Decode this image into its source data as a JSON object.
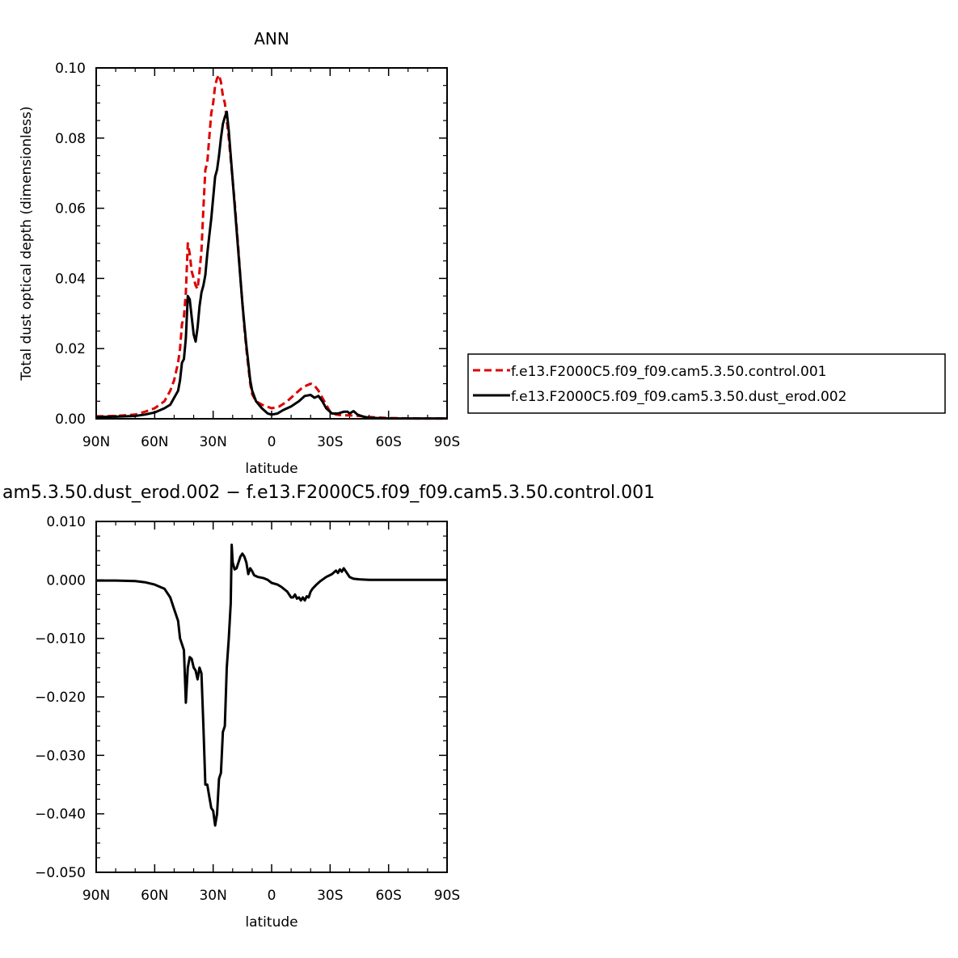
{
  "chart_data": [
    {
      "type": "line",
      "title": "ANN",
      "xlabel": "latitude",
      "ylabel": "Total dust optical depth (dimensionless)",
      "xlim": [
        90,
        -90
      ],
      "ylim": [
        0,
        0.1
      ],
      "x_ticks": [
        {
          "value": 90,
          "label": "90N"
        },
        {
          "value": 60,
          "label": "60N"
        },
        {
          "value": 30,
          "label": "30N"
        },
        {
          "value": 0,
          "label": "0"
        },
        {
          "value": -30,
          "label": "30S"
        },
        {
          "value": -60,
          "label": "60S"
        },
        {
          "value": -90,
          "label": "90S"
        }
      ],
      "y_ticks": [
        {
          "value": 0,
          "label": "0.00"
        },
        {
          "value": 0.02,
          "label": "0.02"
        },
        {
          "value": 0.04,
          "label": "0.04"
        },
        {
          "value": 0.06,
          "label": "0.06"
        },
        {
          "value": 0.08,
          "label": "0.08"
        },
        {
          "value": 0.1,
          "label": "0.10"
        }
      ],
      "legend_position": "right",
      "grid": false,
      "series": [
        {
          "name": "f.e13.F2000C5.f09_f09.cam5.3.50.control.001",
          "color": "#dd0000",
          "dash": "dashed",
          "points": [
            [
              90,
              0.0007
            ],
            [
              80,
              0.0008
            ],
            [
              70,
              0.0012
            ],
            [
              65,
              0.002
            ],
            [
              60,
              0.003
            ],
            [
              55,
              0.005
            ],
            [
              52,
              0.008
            ],
            [
              50,
              0.011
            ],
            [
              48,
              0.016
            ],
            [
              47,
              0.02
            ],
            [
              46,
              0.027
            ],
            [
              45,
              0.029
            ],
            [
              44,
              0.036
            ],
            [
              43,
              0.05
            ],
            [
              42,
              0.047
            ],
            [
              41,
              0.042
            ],
            [
              40,
              0.04
            ],
            [
              39,
              0.038
            ],
            [
              38,
              0.037
            ],
            [
              37,
              0.042
            ],
            [
              36,
              0.048
            ],
            [
              35,
              0.06
            ],
            [
              34,
              0.071
            ],
            [
              33,
              0.073
            ],
            [
              32,
              0.08
            ],
            [
              31,
              0.087
            ],
            [
              30,
              0.09
            ],
            [
              29,
              0.095
            ],
            [
              28,
              0.097
            ],
            [
              27,
              0.098
            ],
            [
              26,
              0.096
            ],
            [
              25,
              0.092
            ],
            [
              24,
              0.09
            ],
            [
              23,
              0.085
            ],
            [
              22,
              0.08
            ],
            [
              21,
              0.074
            ],
            [
              20,
              0.068
            ],
            [
              19,
              0.062
            ],
            [
              18,
              0.055
            ],
            [
              17,
              0.048
            ],
            [
              16,
              0.04
            ],
            [
              15,
              0.033
            ],
            [
              14,
              0.026
            ],
            [
              13,
              0.02
            ],
            [
              12,
              0.015
            ],
            [
              11,
              0.01
            ],
            [
              10,
              0.007
            ],
            [
              8,
              0.005
            ],
            [
              5,
              0.004
            ],
            [
              0,
              0.003
            ],
            [
              -4,
              0.0035
            ],
            [
              -8,
              0.005
            ],
            [
              -12,
              0.007
            ],
            [
              -16,
              0.009
            ],
            [
              -18,
              0.0095
            ],
            [
              -20,
              0.01
            ],
            [
              -22,
              0.0095
            ],
            [
              -24,
              0.008
            ],
            [
              -26,
              0.006
            ],
            [
              -28,
              0.004
            ],
            [
              -30,
              0.002
            ],
            [
              -33,
              0.0012
            ],
            [
              -36,
              0.001
            ],
            [
              -40,
              0.001
            ],
            [
              -45,
              0.0008
            ],
            [
              -50,
              0.0005
            ],
            [
              -60,
              0.0002
            ],
            [
              -75,
              0.0001
            ],
            [
              -90,
              0.0001
            ]
          ]
        },
        {
          "name": "f.e13.F2000C5.f09_f09.cam5.3.50.dust_erod.002",
          "color": "#000000",
          "dash": "solid",
          "points": [
            [
              90,
              0.0005
            ],
            [
              80,
              0.0006
            ],
            [
              70,
              0.0008
            ],
            [
              65,
              0.0012
            ],
            [
              60,
              0.0018
            ],
            [
              55,
              0.003
            ],
            [
              52,
              0.004
            ],
            [
              50,
              0.006
            ],
            [
              48,
              0.008
            ],
            [
              47,
              0.011
            ],
            [
              46,
              0.016
            ],
            [
              45,
              0.017
            ],
            [
              44,
              0.023
            ],
            [
              43,
              0.035
            ],
            [
              42,
              0.034
            ],
            [
              41,
              0.029
            ],
            [
              40,
              0.024
            ],
            [
              39,
              0.022
            ],
            [
              38,
              0.026
            ],
            [
              37,
              0.032
            ],
            [
              36,
              0.036
            ],
            [
              35,
              0.038
            ],
            [
              34,
              0.041
            ],
            [
              33,
              0.047
            ],
            [
              32,
              0.052
            ],
            [
              31,
              0.057
            ],
            [
              30,
              0.063
            ],
            [
              29,
              0.069
            ],
            [
              28,
              0.071
            ],
            [
              27,
              0.075
            ],
            [
              26,
              0.08
            ],
            [
              25,
              0.084
            ],
            [
              24,
              0.086
            ],
            [
              23,
              0.0875
            ],
            [
              22,
              0.082
            ],
            [
              21,
              0.075
            ],
            [
              20,
              0.068
            ],
            [
              19,
              0.061
            ],
            [
              18,
              0.054
            ],
            [
              17,
              0.047
            ],
            [
              16,
              0.04
            ],
            [
              15,
              0.033
            ],
            [
              14,
              0.027
            ],
            [
              13,
              0.021
            ],
            [
              12,
              0.016
            ],
            [
              11,
              0.011
            ],
            [
              10,
              0.008
            ],
            [
              8,
              0.005
            ],
            [
              5,
              0.003
            ],
            [
              2,
              0.0015
            ],
            [
              0,
              0.0012
            ],
            [
              -3,
              0.0015
            ],
            [
              -6,
              0.0025
            ],
            [
              -10,
              0.0035
            ],
            [
              -14,
              0.005
            ],
            [
              -17,
              0.0065
            ],
            [
              -20,
              0.0068
            ],
            [
              -22,
              0.006
            ],
            [
              -24,
              0.0065
            ],
            [
              -26,
              0.005
            ],
            [
              -28,
              0.003
            ],
            [
              -31,
              0.0015
            ],
            [
              -34,
              0.0015
            ],
            [
              -37,
              0.002
            ],
            [
              -39,
              0.002
            ],
            [
              -40,
              0.0015
            ],
            [
              -42,
              0.0022
            ],
            [
              -44,
              0.0012
            ],
            [
              -47,
              0.0006
            ],
            [
              -50,
              0.0003
            ],
            [
              -60,
              0.0001
            ],
            [
              -90,
              0.0001
            ]
          ]
        }
      ]
    },
    {
      "type": "line",
      "title": "am5.3.50.dust_erod.002 − f.e13.F2000C5.f09_f09.cam5.3.50.control.001",
      "xlabel": "latitude",
      "ylabel": "",
      "xlim": [
        90,
        -90
      ],
      "ylim": [
        -0.05,
        0.01
      ],
      "x_ticks": [
        {
          "value": 90,
          "label": "90N"
        },
        {
          "value": 60,
          "label": "60N"
        },
        {
          "value": 30,
          "label": "30N"
        },
        {
          "value": 0,
          "label": "0"
        },
        {
          "value": -30,
          "label": "30S"
        },
        {
          "value": -60,
          "label": "60S"
        },
        {
          "value": -90,
          "label": "90S"
        }
      ],
      "y_ticks": [
        {
          "value": -0.05,
          "label": "−0.050"
        },
        {
          "value": -0.04,
          "label": "−0.040"
        },
        {
          "value": -0.03,
          "label": "−0.030"
        },
        {
          "value": -0.02,
          "label": "−0.020"
        },
        {
          "value": -0.01,
          "label": "−0.010"
        },
        {
          "value": 0,
          "label": "0.000"
        },
        {
          "value": 0.01,
          "label": "0.010"
        }
      ],
      "grid": false,
      "series": [
        {
          "color": "#000000",
          "dash": "solid",
          "points": [
            [
              90,
              -0.0001
            ],
            [
              80,
              -0.0001
            ],
            [
              70,
              -0.0002
            ],
            [
              65,
              -0.0004
            ],
            [
              60,
              -0.0008
            ],
            [
              55,
              -0.0015
            ],
            [
              52,
              -0.003
            ],
            [
              50,
              -0.005
            ],
            [
              48,
              -0.007
            ],
            [
              47,
              -0.01
            ],
            [
              46,
              -0.011
            ],
            [
              45,
              -0.012
            ],
            [
              44,
              -0.021
            ],
            [
              43,
              -0.015
            ],
            [
              42,
              -0.0132
            ],
            [
              41,
              -0.0135
            ],
            [
              40,
              -0.015
            ],
            [
              39,
              -0.0155
            ],
            [
              38,
              -0.017
            ],
            [
              37,
              -0.015
            ],
            [
              36,
              -0.016
            ],
            [
              35,
              -0.025
            ],
            [
              34,
              -0.035
            ],
            [
              33,
              -0.035
            ],
            [
              32,
              -0.037
            ],
            [
              31,
              -0.039
            ],
            [
              30,
              -0.0395
            ],
            [
              29,
              -0.042
            ],
            [
              28,
              -0.04
            ],
            [
              27,
              -0.034
            ],
            [
              26,
              -0.033
            ],
            [
              25,
              -0.026
            ],
            [
              24,
              -0.025
            ],
            [
              23,
              -0.015
            ],
            [
              22,
              -0.01
            ],
            [
              21,
              -0.004
            ],
            [
              20.5,
              0.006
            ],
            [
              20,
              0.003
            ],
            [
              19,
              0.0018
            ],
            [
              18,
              0.002
            ],
            [
              17,
              0.003
            ],
            [
              16,
              0.004
            ],
            [
              15,
              0.0045
            ],
            [
              14,
              0.004
            ],
            [
              13,
              0.003
            ],
            [
              12,
              0.001
            ],
            [
              11,
              0.002
            ],
            [
              10,
              0.0015
            ],
            [
              9,
              0.0008
            ],
            [
              7,
              0.0005
            ],
            [
              4,
              0.0003
            ],
            [
              2,
              0
            ],
            [
              0,
              -0.0005
            ],
            [
              -3,
              -0.0008
            ],
            [
              -5,
              -0.0012
            ],
            [
              -8,
              -0.002
            ],
            [
              -10,
              -0.003
            ],
            [
              -11,
              -0.003
            ],
            [
              -12,
              -0.0025
            ],
            [
              -13,
              -0.0032
            ],
            [
              -14,
              -0.003
            ],
            [
              -15,
              -0.0035
            ],
            [
              -16,
              -0.003
            ],
            [
              -17,
              -0.0035
            ],
            [
              -18,
              -0.0028
            ],
            [
              -19,
              -0.003
            ],
            [
              -20,
              -0.002
            ],
            [
              -21,
              -0.0015
            ],
            [
              -23,
              -0.0008
            ],
            [
              -25,
              -0.0002
            ],
            [
              -28,
              0.0005
            ],
            [
              -31,
              0.001
            ],
            [
              -33,
              0.0016
            ],
            [
              -34,
              0.0012
            ],
            [
              -35,
              0.0018
            ],
            [
              -36,
              0.0014
            ],
            [
              -37,
              0.002
            ],
            [
              -38,
              0.0015
            ],
            [
              -40,
              0.0005
            ],
            [
              -42,
              0.0002
            ],
            [
              -45,
              0.0001
            ],
            [
              -50,
              0
            ],
            [
              -60,
              0
            ],
            [
              -90,
              0
            ]
          ]
        }
      ]
    }
  ]
}
